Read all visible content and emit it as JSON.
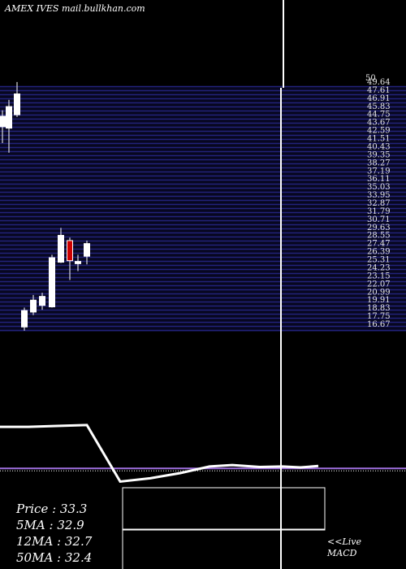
{
  "header": {
    "exchange": "AMEX",
    "symbol": "IVES",
    "site": "mail.bullkhan.com"
  },
  "chart_data": {
    "type": "candlestick",
    "price_axis": {
      "top_label": "50",
      "ticks": [
        "49.64",
        "47.61",
        "46.91",
        "45.83",
        "44.75",
        "43.67",
        "42.59",
        "41.51",
        "40.43",
        "39.35",
        "38.27",
        "37.19",
        "36.11",
        "35.03",
        "33.95",
        "32.87",
        "31.79",
        "30.71",
        "29.63",
        "28.55",
        "27.47",
        "26.39",
        "25.31",
        "24.23",
        "23.15",
        "22.07",
        "20.99",
        "19.91",
        "18.83",
        "17.75",
        "16.67"
      ],
      "range": [
        16.67,
        49.64
      ]
    },
    "candles": [
      {
        "open": 44.2,
        "close": 45.6,
        "high": 46.4,
        "low": 42.0
      },
      {
        "open": 44.0,
        "close": 46.9,
        "high": 47.8,
        "low": 40.7
      },
      {
        "open": 45.8,
        "close": 48.6,
        "high": 50.2,
        "low": 45.5
      },
      {
        "open": 17.3,
        "close": 19.5,
        "high": 19.9,
        "low": 16.8
      },
      {
        "open": 19.3,
        "close": 20.9,
        "high": 21.6,
        "low": 18.9
      },
      {
        "open": 20.2,
        "close": 21.4,
        "high": 21.9,
        "low": 19.6
      },
      {
        "open": 20.0,
        "close": 26.6,
        "high": 27.0,
        "low": 19.9
      },
      {
        "open": 26.0,
        "close": 29.6,
        "high": 30.6,
        "low": 25.9
      },
      {
        "open": 28.9,
        "close": 26.2,
        "high": 29.3,
        "low": 23.6
      },
      {
        "open": 25.8,
        "close": 26.1,
        "high": 27.0,
        "low": 24.8
      },
      {
        "open": 26.8,
        "close": 28.5,
        "high": 28.9,
        "low": 25.7
      }
    ],
    "macd": {
      "values": [
        0.98,
        0.98,
        1.0,
        1.02,
        -0.18,
        -0.11,
        0.0,
        0.14,
        0.17,
        0.13,
        0.14,
        0.12,
        0.15
      ],
      "signal_level": 0.1
    }
  },
  "stats": {
    "price": "Price   : 33.3",
    "ma5": "5MA : 32.9",
    "ma12": "12MA : 32.7",
    "ma50": "50MA : 32.4"
  },
  "live": {
    "line1": "<<Live",
    "line2": "MACD"
  },
  "colors": {
    "background": "#000000",
    "grid": "#22227a",
    "bull": "#ffffff",
    "bear": "#cc0000",
    "signal": "#a070e0"
  }
}
